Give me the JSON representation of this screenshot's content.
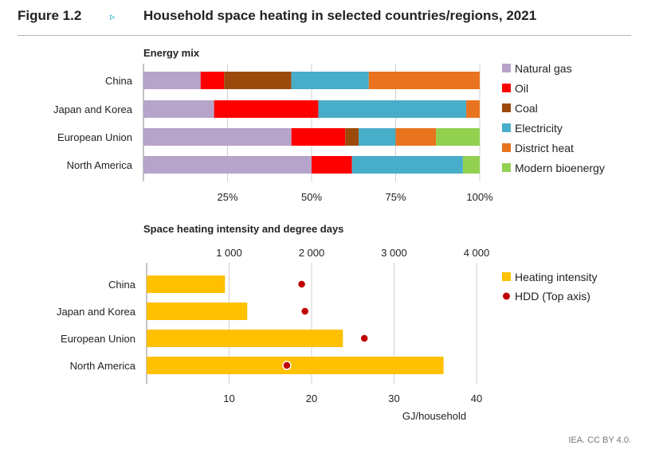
{
  "figure": {
    "label": "Figure 1.2",
    "arrow": "▹",
    "title": "Household space heating in selected countries/regions, 2021",
    "credit": "IEA. CC BY 4.0."
  },
  "chart_data": [
    {
      "type": "bar",
      "orientation": "horizontal",
      "stacked": true,
      "percent": true,
      "title": "Energy mix",
      "categories": [
        "China",
        "Japan and Korea",
        "European Union",
        "North America"
      ],
      "series": [
        {
          "name": "Natural gas",
          "color": "#b7a4cb",
          "values": [
            17,
            21,
            44,
            50
          ]
        },
        {
          "name": "Oil",
          "color": "#ff0000",
          "values": [
            7,
            31,
            16,
            12
          ]
        },
        {
          "name": "Coal",
          "color": "#9c4a0c",
          "values": [
            20,
            0,
            4,
            0
          ]
        },
        {
          "name": "Electricity",
          "color": "#48adc8",
          "values": [
            23,
            44,
            11,
            33
          ]
        },
        {
          "name": "District heat",
          "color": "#e9731e",
          "values": [
            33,
            4,
            12,
            0
          ]
        },
        {
          "name": "Modern bioenergy",
          "color": "#92d050",
          "values": [
            0,
            0,
            13,
            5
          ]
        }
      ],
      "xlim": [
        0,
        100
      ],
      "xticks": [
        "25%",
        "50%",
        "75%",
        "100%"
      ],
      "grid": true,
      "legend": "right"
    },
    {
      "type": "bar",
      "orientation": "horizontal",
      "title": "Space heating intensity and degree days",
      "categories": [
        "China",
        "Japan and Korea",
        "European Union",
        "North America"
      ],
      "series": [
        {
          "name": "Heating intensity",
          "color": "#ffc000",
          "axis": "bottom",
          "values": [
            9.5,
            12.2,
            23.8,
            36
          ]
        },
        {
          "name": "HDD (Top axis)",
          "color": "#c00000",
          "axis": "top",
          "marker": "dot",
          "values": [
            1880,
            1920,
            2640,
            1700
          ]
        }
      ],
      "xlabel": "GJ/household",
      "xlim": [
        0,
        40
      ],
      "xticks": [
        "10",
        "20",
        "30",
        "40"
      ],
      "x2lim": [
        0,
        4000
      ],
      "x2ticks": [
        "1 000",
        "2 000",
        "3 000",
        "4 000"
      ],
      "grid": true,
      "legend": "right"
    }
  ]
}
